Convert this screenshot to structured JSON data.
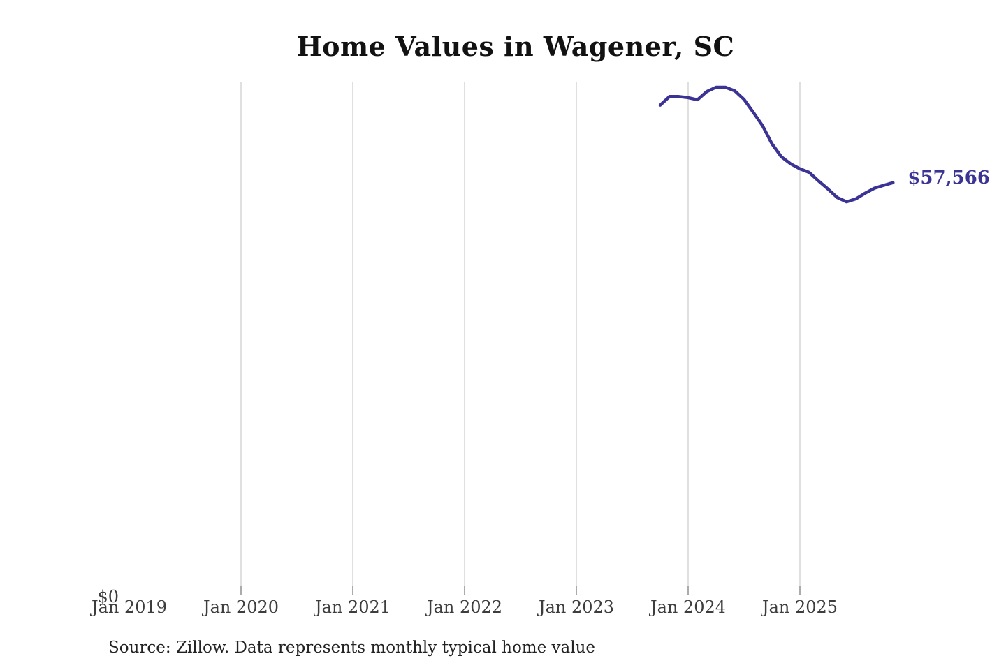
{
  "chart_data": {
    "type": "line",
    "title": "Home Values in Wagener, SC",
    "source": "Source: Zillow. Data represents monthly typical home value",
    "end_label": "$57,566",
    "current_value": 57566,
    "y_tick_label": "$0",
    "ylim": [
      0,
      71680
    ],
    "grid": "vertical-only",
    "legend": "none",
    "line_color": "#3c3494",
    "end_label_color": "#3c3494",
    "gridline_color": "#d6d6d6",
    "axis_text_color": "#3d3d3d",
    "x_ticks": [
      {
        "label": "Jan 2019",
        "months_from_jan2019": 0,
        "gridline": false
      },
      {
        "label": "Jan 2020",
        "months_from_jan2019": 12,
        "gridline": true
      },
      {
        "label": "Jan 2021",
        "months_from_jan2019": 24,
        "gridline": true
      },
      {
        "label": "Jan 2022",
        "months_from_jan2019": 36,
        "gridline": true
      },
      {
        "label": "Jan 2023",
        "months_from_jan2019": 48,
        "gridline": true
      },
      {
        "label": "Jan 2024",
        "months_from_jan2019": 60,
        "gridline": true
      },
      {
        "label": "Jan 2025",
        "months_from_jan2019": 72,
        "gridline": true
      }
    ],
    "series": [
      {
        "name": "Monthly typical home value",
        "points": [
          {
            "month": "2023-10",
            "value": 68400
          },
          {
            "month": "2023-11",
            "value": 69600
          },
          {
            "month": "2023-12",
            "value": 69600
          },
          {
            "month": "2024-01",
            "value": 69450
          },
          {
            "month": "2024-02",
            "value": 69150
          },
          {
            "month": "2024-03",
            "value": 70300
          },
          {
            "month": "2024-04",
            "value": 70900
          },
          {
            "month": "2024-05",
            "value": 70900
          },
          {
            "month": "2024-06",
            "value": 70400
          },
          {
            "month": "2024-07",
            "value": 69200
          },
          {
            "month": "2024-08",
            "value": 67400
          },
          {
            "month": "2024-09",
            "value": 65500
          },
          {
            "month": "2024-10",
            "value": 63000
          },
          {
            "month": "2024-11",
            "value": 61200
          },
          {
            "month": "2024-12",
            "value": 60200
          },
          {
            "month": "2025-01",
            "value": 59500
          },
          {
            "month": "2025-02",
            "value": 59000
          },
          {
            "month": "2025-03",
            "value": 57800
          },
          {
            "month": "2025-04",
            "value": 56700
          },
          {
            "month": "2025-05",
            "value": 55500
          },
          {
            "month": "2025-06",
            "value": 54900
          },
          {
            "month": "2025-07",
            "value": 55300
          },
          {
            "month": "2025-08",
            "value": 56100
          },
          {
            "month": "2025-09",
            "value": 56800
          },
          {
            "month": "2025-10",
            "value": 57200
          },
          {
            "month": "2025-11",
            "value": 57566
          }
        ]
      }
    ]
  }
}
